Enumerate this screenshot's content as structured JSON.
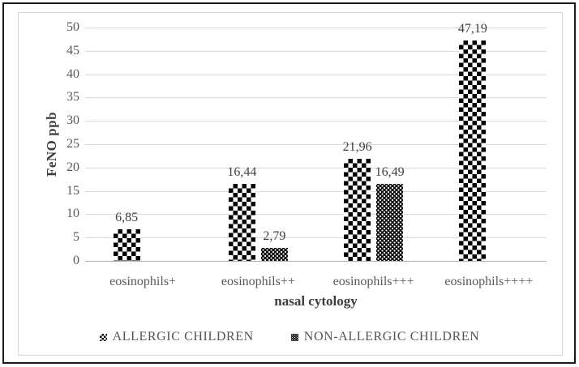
{
  "chart_data": {
    "type": "bar",
    "title": "",
    "categories": [
      "eosinophils+",
      "eosinophils++",
      "eosinophils+++",
      "eosinophils++++"
    ],
    "series": [
      {
        "name": "ALLERGIC CHILDREN",
        "pattern": "checker",
        "values": [
          6.85,
          16.44,
          21.96,
          47.19
        ],
        "labels": [
          "6,85",
          "16,44",
          "21,96",
          "47,19"
        ]
      },
      {
        "name": "NON-ALLERGIC CHILDREN",
        "pattern": "dots",
        "values": [
          null,
          2.79,
          16.49,
          null
        ],
        "labels": [
          "",
          "2,79",
          "16,49",
          ""
        ]
      }
    ],
    "xlabel": "nasal cytology",
    "ylabel": "FeNO ppb",
    "ylim": [
      0,
      50
    ],
    "ytick_step": 5,
    "decimal_separator": ",",
    "grid": true,
    "legend_position": "bottom"
  },
  "colors": {
    "gridline": "#d9d9d9",
    "axis_line": "#adadad",
    "tick_text": "#595959",
    "axis_title_text": "#3d3d3d",
    "data_label_text": "#3f3f3f",
    "bar_black": "#000000",
    "outer_border": "#1b1b1b",
    "panel_border": "#d6d6d6",
    "background": "#ffffff"
  }
}
